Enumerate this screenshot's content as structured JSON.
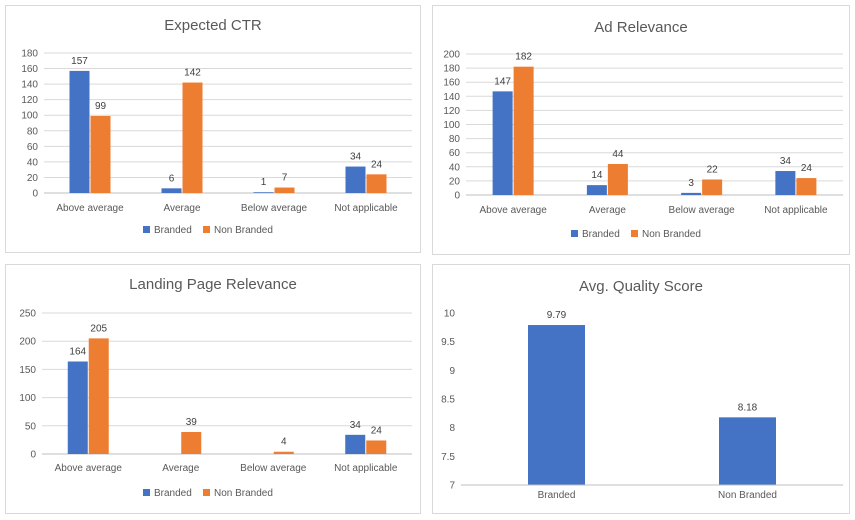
{
  "colors": {
    "branded": "#4472c4",
    "non_branded": "#ed7d31"
  },
  "chart_data": [
    {
      "type": "bar",
      "title": "Expected CTR",
      "categories": [
        "Above average",
        "Average",
        "Below average",
        "Not applicable"
      ],
      "series": [
        {
          "name": "Branded",
          "values": [
            157,
            6,
            1,
            34
          ]
        },
        {
          "name": "Non Branded",
          "values": [
            99,
            142,
            7,
            24
          ]
        }
      ],
      "ylim": [
        0,
        180
      ],
      "yticks": [
        0,
        20,
        40,
        60,
        80,
        100,
        120,
        140,
        160,
        180
      ],
      "grid": true,
      "legend": "bottom"
    },
    {
      "type": "bar",
      "title": "Ad Relevance",
      "categories": [
        "Above average",
        "Average",
        "Below average",
        "Not applicable"
      ],
      "series": [
        {
          "name": "Branded",
          "values": [
            147,
            14,
            3,
            34
          ]
        },
        {
          "name": "Non Branded",
          "values": [
            182,
            44,
            22,
            24
          ]
        }
      ],
      "ylim": [
        0,
        200
      ],
      "yticks": [
        0,
        20,
        40,
        60,
        80,
        100,
        120,
        140,
        160,
        180,
        200
      ],
      "grid": true,
      "legend": "bottom"
    },
    {
      "type": "bar",
      "title": "Landing Page Relevance",
      "categories": [
        "Above average",
        "Average",
        "Below average",
        "Not applicable"
      ],
      "series": [
        {
          "name": "Branded",
          "values": [
            164,
            null,
            null,
            34
          ]
        },
        {
          "name": "Non Branded",
          "values": [
            205,
            39,
            4,
            24
          ]
        }
      ],
      "ylim": [
        0,
        250
      ],
      "yticks": [
        0,
        50,
        100,
        150,
        200,
        250
      ],
      "grid": true,
      "legend": "bottom"
    },
    {
      "type": "bar",
      "title": "Avg. Quality Score",
      "categories": [
        "Branded",
        "Non Branded"
      ],
      "series": [
        {
          "values": [
            9.79,
            8.18
          ]
        }
      ],
      "ylim": [
        7,
        10
      ],
      "yticks": [
        7,
        7.5,
        8,
        8.5,
        9,
        9.5,
        10
      ],
      "grid": false,
      "legend": "none"
    }
  ]
}
